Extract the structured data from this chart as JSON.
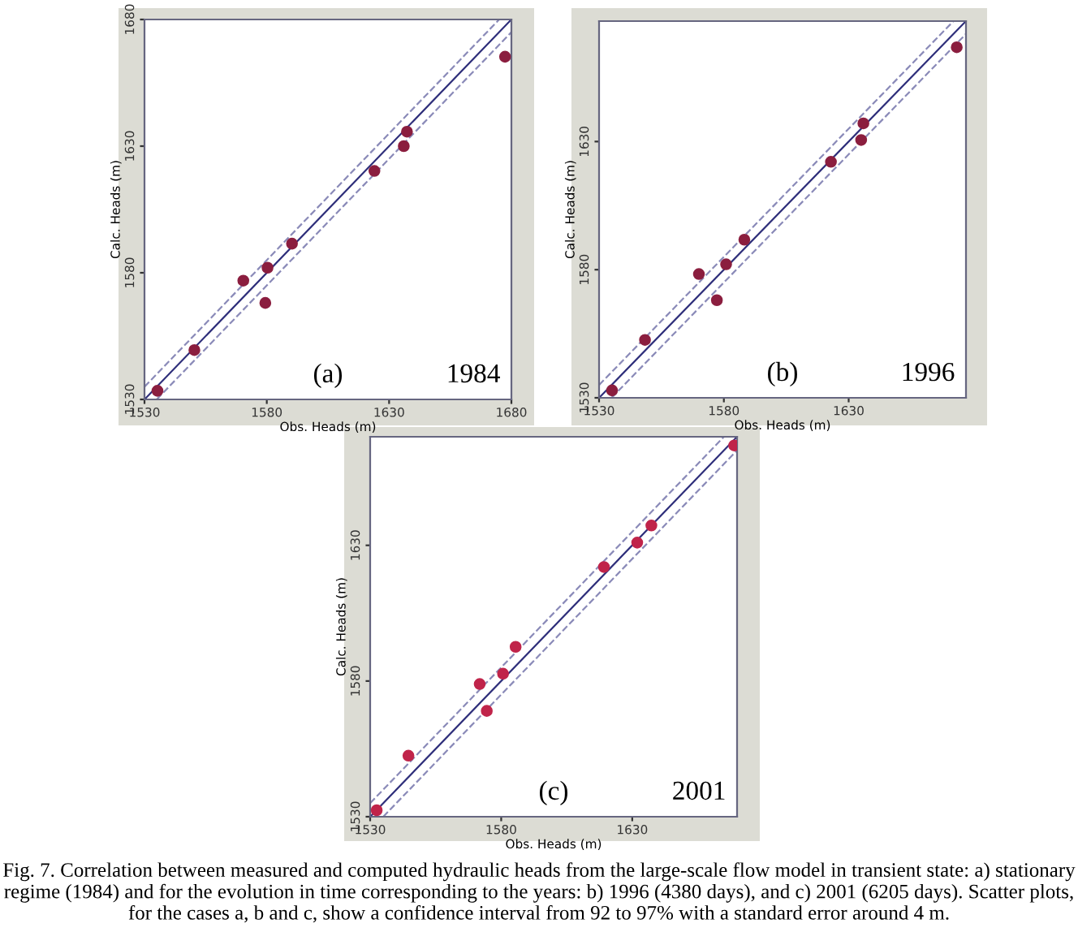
{
  "chart_data": [
    {
      "type": "scatter",
      "xlabel": "Obs. Heads (m)",
      "ylabel": "Calc. Heads (m)",
      "xlim": [
        1530,
        1680
      ],
      "ylim": [
        1530,
        1680
      ],
      "xticks": [
        1530,
        1580,
        1630,
        1680
      ],
      "yticks": [
        1530,
        1580,
        1630,
        1680
      ],
      "grid": false,
      "marker": "circle",
      "annotations": [
        "(a)",
        "1984"
      ],
      "series": [
        {
          "color": "#8b1e3f",
          "x": [
            1535.3,
            1550.4,
            1570.4,
            1580.3,
            1579.4,
            1590.3,
            1624,
            1636,
            1637.3,
            1677.4
          ],
          "values": [
            1533.4,
            1549.5,
            1576.9,
            1582,
            1568.1,
            1591.5,
            1620.2,
            1630,
            1635.7,
            1665.3
          ]
        },
        {
          "type": "line",
          "color": "#2e2e7a",
          "x": [
            1530,
            1680
          ],
          "values": [
            1530,
            1680
          ],
          "line_style": "solid",
          "marker": "none"
        },
        {
          "type": "line",
          "color": "#8a8ab8",
          "x": [
            1530,
            1675
          ],
          "values": [
            1535,
            1680
          ],
          "line_style": "dashed",
          "marker": "none"
        },
        {
          "type": "line",
          "color": "#8a8ab8",
          "x": [
            1535,
            1680
          ],
          "values": [
            1530,
            1675
          ],
          "line_style": "dashed",
          "marker": "none"
        }
      ]
    },
    {
      "type": "scatter",
      "xlabel": "Obs. Heads (m)",
      "ylabel": "Calc. Heads (m)",
      "xlim": [
        1530,
        1677
      ],
      "ylim": [
        1530,
        1677
      ],
      "xticks": [
        1530,
        1580,
        1630
      ],
      "yticks": [
        1530,
        1580,
        1630
      ],
      "grid": false,
      "marker": "circle",
      "annotations": [
        "(b)",
        "1996"
      ],
      "series": [
        {
          "color": "#8b1e3f",
          "x": [
            1535.2,
            1548.4,
            1570,
            1577.2,
            1580.9,
            1588.2,
            1622.9,
            1635,
            1635.9,
            1673.3
          ],
          "values": [
            1532.9,
            1552.6,
            1578.3,
            1568.1,
            1582.1,
            1591.7,
            1622.1,
            1630.6,
            1637.1,
            1666.8
          ]
        },
        {
          "type": "line",
          "color": "#2e2e7a",
          "x": [
            1530,
            1677
          ],
          "values": [
            1530,
            1677
          ],
          "line_style": "solid",
          "marker": "none"
        },
        {
          "type": "line",
          "color": "#8a8ab8",
          "x": [
            1530,
            1672
          ],
          "values": [
            1535,
            1677
          ],
          "line_style": "dashed",
          "marker": "none"
        },
        {
          "type": "line",
          "color": "#8a8ab8",
          "x": [
            1535,
            1677
          ],
          "values": [
            1530,
            1672
          ],
          "line_style": "dashed",
          "marker": "none"
        }
      ]
    },
    {
      "type": "scatter",
      "xlabel": "Obs. Heads (m)",
      "ylabel": "Calc. Heads (m)",
      "xlim": [
        1530,
        1670
      ],
      "ylim": [
        1530,
        1670
      ],
      "xticks": [
        1530,
        1580,
        1630
      ],
      "yticks": [
        1530,
        1580,
        1630
      ],
      "grid": false,
      "marker": "circle",
      "annotations": [
        "(c)",
        "2001",
        "Fig. 7. Correlation between measured and computed hydraulic heads from the large-scale flow model in transient state: a) stationary regime (1984) and for the evolution in time corresponding to the years: b) 1996 (4380 days), and c) 2001 (6205 days). Scatter plots, for the cases a, b and c, show a confidence interval from 92 to 97% with a standard error around 4 m."
      ],
      "series": [
        {
          "color": "#c0244a",
          "x": [
            1532.5,
            1544.6,
            1571.8,
            1574.5,
            1580.7,
            1585.5,
            1619.2,
            1631.9,
            1637.3,
            1668.9
          ],
          "values": [
            1532.4,
            1552.5,
            1578.9,
            1569,
            1582.7,
            1592.6,
            1622,
            1631,
            1637.3,
            1666.8
          ]
        },
        {
          "type": "line",
          "color": "#2e2e7a",
          "x": [
            1530,
            1670
          ],
          "values": [
            1530,
            1670
          ],
          "line_style": "solid",
          "marker": "none"
        },
        {
          "type": "line",
          "color": "#8a8ab8",
          "x": [
            1530,
            1665
          ],
          "values": [
            1535,
            1670
          ],
          "line_style": "dashed",
          "marker": "none"
        },
        {
          "type": "line",
          "color": "#8a8ab8",
          "x": [
            1535,
            1670
          ],
          "values": [
            1530,
            1665
          ],
          "line_style": "dashed",
          "marker": "none"
        }
      ]
    }
  ]
}
